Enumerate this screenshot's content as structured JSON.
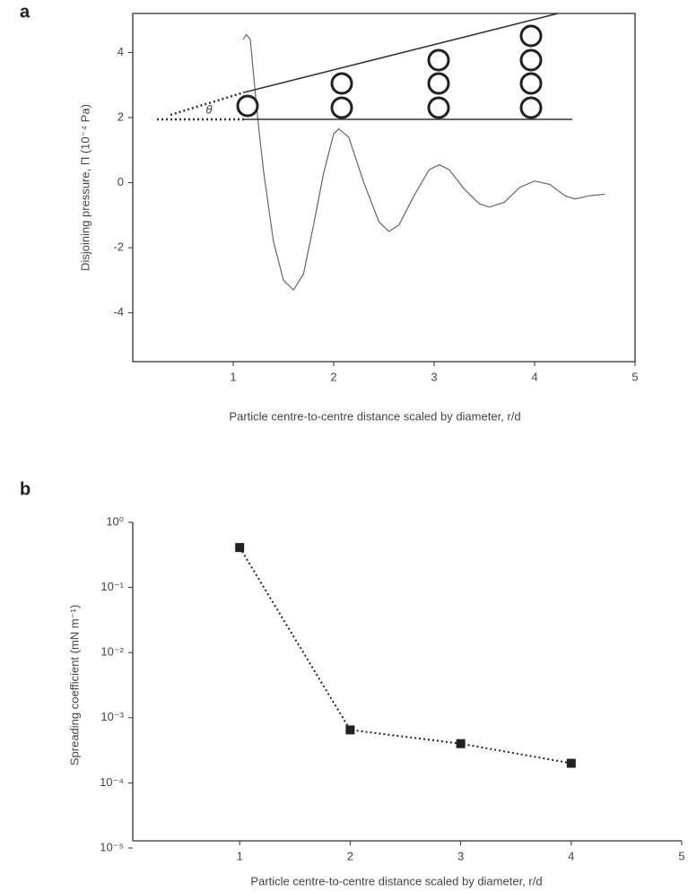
{
  "chart_data": [
    {
      "type": "line",
      "panel": "a",
      "xlabel": "Particle centre-to-centre distance scaled by diameter, r/d",
      "ylabel": "Disjoining pressure, Π (10⁻⁴ Pa)",
      "annotations": [
        "θ"
      ],
      "x": [
        1.1,
        1.13,
        1.17,
        1.2,
        1.25,
        1.3,
        1.4,
        1.5,
        1.6,
        1.7,
        1.8,
        1.9,
        2.0,
        2.05,
        2.15,
        2.3,
        2.45,
        2.55,
        2.65,
        2.8,
        2.95,
        3.05,
        3.15,
        3.3,
        3.45,
        3.55,
        3.7,
        3.85,
        4.0,
        4.15,
        4.3,
        4.4,
        4.55,
        4.7
      ],
      "values": [
        4.4,
        4.55,
        4.4,
        3.4,
        1.8,
        0.4,
        -1.8,
        -3.0,
        -3.3,
        -2.8,
        -1.3,
        0.3,
        1.5,
        1.65,
        1.4,
        0.0,
        -1.2,
        -1.5,
        -1.3,
        -0.4,
        0.4,
        0.55,
        0.4,
        -0.2,
        -0.65,
        -0.75,
        -0.6,
        -0.15,
        0.05,
        -0.05,
        -0.4,
        -0.5,
        -0.4,
        -0.35
      ],
      "color": "#666666",
      "xlim": [
        0,
        5
      ],
      "xticks": [
        1,
        2,
        3,
        4,
        5
      ],
      "ylim": [
        -5.5,
        5.2
      ],
      "yticks": [
        -4,
        -2,
        0,
        2,
        4
      ],
      "frame": true
    },
    {
      "type": "line",
      "panel": "b",
      "xlabel": "Particle centre-to-centre distance scaled by diameter, r/d",
      "ylabel": "Spreading coefficient (mN m⁻¹)",
      "x": [
        1,
        2,
        3,
        4
      ],
      "values": [
        0.41,
        0.00065,
        0.0004,
        0.0002
      ],
      "color": "#222222",
      "markers": true,
      "dashed": true,
      "yscale": "log",
      "xlim": [
        0,
        5
      ],
      "xticks": [
        1,
        2,
        3,
        4,
        5
      ],
      "ylim": [
        1e-05,
        1
      ],
      "yticks": [
        {
          "value": 1,
          "label": "10⁰"
        },
        {
          "value": 0.1,
          "label": "10⁻¹"
        },
        {
          "value": 0.01,
          "label": "10⁻²"
        },
        {
          "value": 0.001,
          "label": "10⁻³"
        },
        {
          "value": 0.0001,
          "label": "10⁻⁴"
        },
        {
          "value": 1e-05,
          "label": "10⁻⁵"
        }
      ],
      "frame": false
    }
  ]
}
